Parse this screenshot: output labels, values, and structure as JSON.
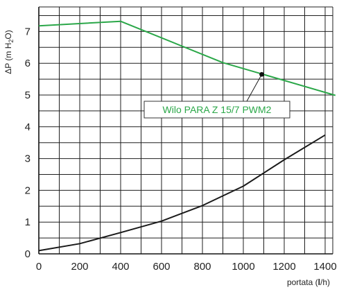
{
  "chart_data": {
    "type": "line",
    "title": "",
    "xlabel": "portata (l/h)",
    "ylabel": "ΔP (m H2O)",
    "xlim": [
      0,
      1450
    ],
    "ylim": [
      0,
      7.6
    ],
    "x_ticks": [
      0,
      200,
      400,
      600,
      800,
      1000,
      1200,
      1400
    ],
    "y_ticks": [
      0,
      1,
      2,
      3,
      4,
      5,
      6,
      7
    ],
    "grid": true,
    "series": [
      {
        "name": "Wilo PARA Z 15/7 PWM2",
        "color": "#2aa748",
        "x": [
          0,
          400,
          900,
          1450
        ],
        "y": [
          7.18,
          7.32,
          6.02,
          4.99
        ]
      },
      {
        "name": "",
        "color": "#1a1a1a",
        "x": [
          0,
          200,
          400,
          600,
          800,
          1000,
          1200,
          1400
        ],
        "y": [
          0.1,
          0.32,
          0.67,
          1.03,
          1.52,
          2.13,
          2.96,
          3.74
        ]
      }
    ],
    "annotation": {
      "text": "Wilo PARA Z 15/7 PWM2",
      "marker_x": 1090,
      "marker_y": 5.65,
      "color": "#2aa748"
    }
  }
}
